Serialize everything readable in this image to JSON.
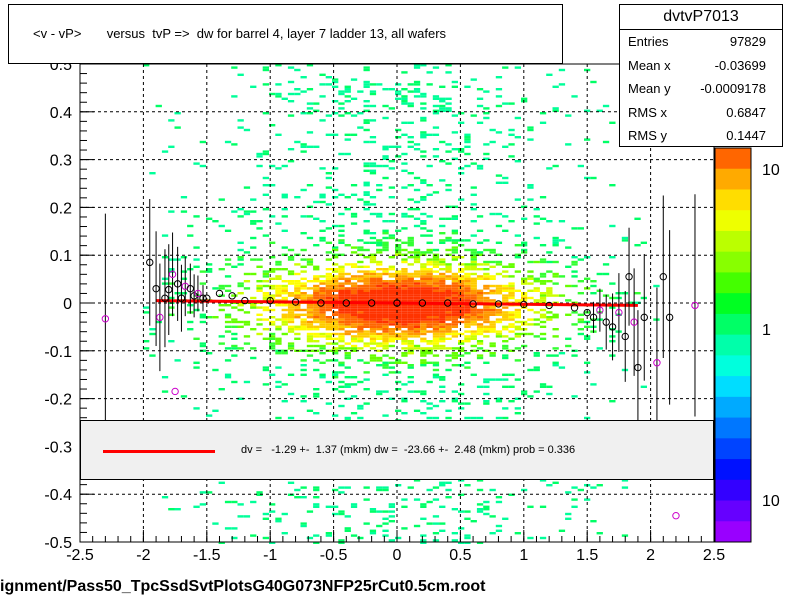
{
  "title": "<v - vP>       versus  tvP =>  dw for barrel 4, layer 7 ladder 13, all wafers",
  "stats": {
    "name": "dvtvP7013",
    "rows": [
      {
        "key": "Entries",
        "value": "97829"
      },
      {
        "key": "Mean x",
        "value": "-0.03699"
      },
      {
        "key": "Mean y",
        "value": "-0.0009178"
      },
      {
        "key": "RMS x",
        "value": "0.6847"
      },
      {
        "key": "RMS y",
        "value": "0.1447"
      }
    ]
  },
  "legend": {
    "text": "dv =   -1.29 +-  1.37 (mkm) dw =  -23.66 +-  2.48 (mkm) prob = 0.336"
  },
  "footer": "ignment/Pass50_TpcSsdSvtPlotsG40G073NFP25rCut0.5cm.root",
  "colors": {
    "fit_line": "#ff0000",
    "profile_open": "#000000",
    "profile_outlier": "#cc00cc"
  },
  "chart_data": {
    "type": "heatmap",
    "xlim": [
      -2.5,
      2.5
    ],
    "ylim": [
      -0.5,
      0.5
    ],
    "x_ticks": [
      "-2.5",
      "-2",
      "-1.5",
      "-1",
      "-0.5",
      "0",
      "0.5",
      "1",
      "1.5",
      "2",
      "2.5"
    ],
    "y_ticks": [
      "-0.5",
      "-0.4",
      "-0.3",
      "-0.2",
      "-0.1",
      "0",
      "0.1",
      "0.2",
      "0.3",
      "0.4",
      "0.5"
    ],
    "y_ticks_hidden_note": "",
    "colorbar_labels": [
      "10",
      "1",
      "10"
    ],
    "grid": true,
    "profile": {
      "x": [
        -2.3,
        -1.95,
        -1.9,
        -1.87,
        -1.83,
        -1.8,
        -1.77,
        -1.73,
        -1.7,
        -1.67,
        -1.63,
        -1.6,
        -1.57,
        -1.53,
        -1.5,
        -1.4,
        -1.3,
        -1.2,
        -1.0,
        -0.8,
        -0.6,
        -0.4,
        -0.2,
        0.0,
        0.2,
        0.4,
        0.6,
        0.8,
        1.0,
        1.2,
        1.4,
        1.5,
        1.55,
        1.6,
        1.65,
        1.7,
        1.75,
        1.8,
        1.83,
        1.87,
        1.9,
        1.95,
        2.05,
        2.1,
        2.15,
        2.35
      ],
      "y": [
        -0.033,
        0.085,
        0.03,
        -0.03,
        0.01,
        0.028,
        0.06,
        0.04,
        0.01,
        0.035,
        0.03,
        0.015,
        0.02,
        0.01,
        0.01,
        0.02,
        0.015,
        0.005,
        0.005,
        0.002,
        0.0,
        0.0,
        0.0,
        0.0,
        0.0,
        0.0,
        -0.002,
        -0.002,
        -0.003,
        -0.005,
        -0.01,
        -0.02,
        -0.03,
        -0.015,
        -0.04,
        -0.05,
        -0.02,
        -0.07,
        0.055,
        -0.04,
        -0.135,
        -0.03,
        -0.125,
        0.055,
        -0.03,
        -0.005
      ]
    },
    "outliers": {
      "x": [
        -1.75,
        2.2
      ],
      "y": [
        -0.185,
        -0.445
      ]
    },
    "fit_line": {
      "x": [
        -1.9,
        1.9
      ],
      "y": [
        0.005,
        -0.005
      ]
    }
  }
}
